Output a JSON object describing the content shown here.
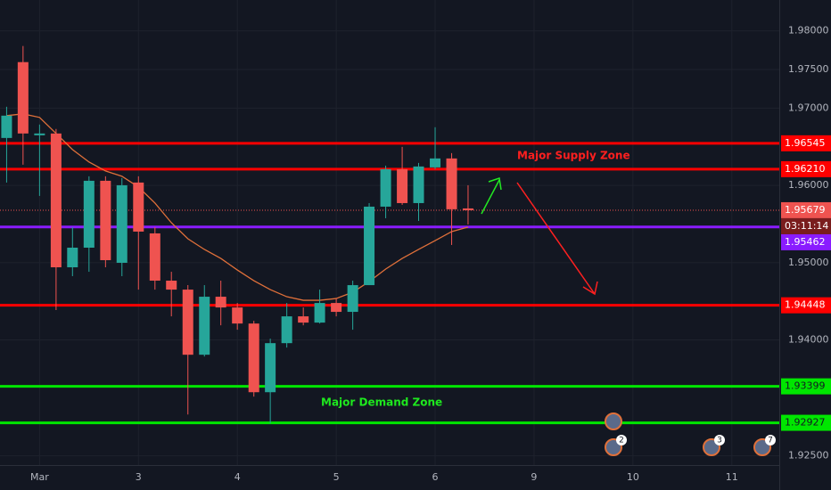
{
  "chart_data": {
    "type": "candlestick",
    "x": [
      -0.333,
      -0.167,
      0,
      0.167,
      0.333,
      0.5,
      0.667,
      0.833,
      1,
      1.167,
      1.333,
      1.5,
      1.667,
      1.833,
      2,
      2.167,
      2.333,
      2.5,
      2.667,
      2.833,
      3,
      3.167,
      3.333,
      3.5,
      3.667,
      3.833,
      4,
      4.167,
      4.333
    ],
    "open": [
      1.96614,
      1.97596,
      1.96649,
      1.96672,
      1.9494,
      1.95194,
      1.9606,
      1.94998,
      1.96037,
      1.95379,
      1.94767,
      1.94651,
      1.93808,
      1.94559,
      1.9442,
      1.94212,
      1.93323,
      1.93958,
      1.94305,
      1.94224,
      1.94478,
      1.94363,
      1.94709,
      1.95725,
      1.9621,
      1.95771,
      1.96233,
      1.96349,
      1.95702
    ],
    "high": [
      1.97018,
      1.97804,
      1.96788,
      1.9673,
      1.9546,
      1.96118,
      1.96118,
      1.96095,
      1.96118,
      1.9546,
      1.94882,
      1.94709,
      1.94709,
      1.94767,
      1.94478,
      1.94247,
      1.94016,
      1.94478,
      1.9442,
      1.94651,
      1.94536,
      1.94767,
      1.95771,
      1.96256,
      1.96499,
      1.96291,
      1.96753,
      1.96418,
      1.96002
    ],
    "low": [
      1.96037,
      1.96268,
      1.95864,
      1.94386,
      1.94825,
      1.94882,
      1.9494,
      1.94825,
      1.94651,
      1.94651,
      1.94305,
      1.93035,
      1.93785,
      1.94189,
      1.94132,
      1.93266,
      1.92919,
      1.93901,
      1.94189,
      1.94212,
      1.94305,
      1.94132,
      1.94709,
      1.95575,
      1.95748,
      1.9554,
      1.9621,
      1.95229,
      1.95494
    ],
    "close": [
      1.96903,
      1.96672,
      1.96672,
      1.9494,
      1.95194,
      1.9606,
      1.95032,
      1.96002,
      1.95402,
      1.94767,
      1.94651,
      1.93808,
      1.94559,
      1.9442,
      1.94212,
      1.93323,
      1.93958,
      1.94305,
      1.94224,
      1.94478,
      1.94363,
      1.94709,
      1.95725,
      1.9621,
      1.95771,
      1.96245,
      1.96349,
      1.95691,
      1.95679
    ],
    "up_color": "#26a69a",
    "down_color": "#ef5350",
    "ma": {
      "color": "#e0703a",
      "values": [
        1.96903,
        1.96926,
        1.9688,
        1.96672,
        1.96464,
        1.96303,
        1.96187,
        1.96118,
        1.95979,
        1.95771,
        1.95517,
        1.95309,
        1.95171,
        1.95055,
        1.94905,
        1.94767,
        1.94651,
        1.94559,
        1.94513,
        1.94513,
        1.94536,
        1.94617,
        1.94755,
        1.94917,
        1.95055,
        1.95171,
        1.95286,
        1.95402,
        1.9546
      ]
    },
    "xlim": [
      -0.4,
      7.48
    ],
    "ylim": [
      1.9238,
      1.984
    ],
    "xticks": [
      {
        "value": 0,
        "label": "Mar"
      },
      {
        "value": 1,
        "label": "3"
      },
      {
        "value": 2,
        "label": "4"
      },
      {
        "value": 3,
        "label": "5"
      },
      {
        "value": 4,
        "label": "6"
      },
      {
        "value": 5,
        "label": "9"
      },
      {
        "value": 6,
        "label": "10"
      },
      {
        "value": 7,
        "label": "11"
      }
    ],
    "yticks": [
      {
        "value": 1.98,
        "label": "1.98000"
      },
      {
        "value": 1.975,
        "label": "1.97500"
      },
      {
        "value": 1.97,
        "label": "1.97000"
      },
      {
        "value": 1.96,
        "label": "1.96000"
      },
      {
        "value": 1.95,
        "label": "1.95000"
      },
      {
        "value": 1.94,
        "label": "1.94000"
      },
      {
        "value": 1.925,
        "label": "1.92500"
      }
    ],
    "grid": true,
    "levels": [
      {
        "value": 1.96545,
        "label": "1.96545",
        "color": "#ff0000"
      },
      {
        "value": 1.9621,
        "label": "1.96210",
        "color": "#ff0000"
      },
      {
        "value": 1.95462,
        "label": "1.95462",
        "color": "#8a1cff"
      },
      {
        "value": 1.94448,
        "label": "1.94448",
        "color": "#ff0000"
      },
      {
        "value": 1.93399,
        "label": "1.93399",
        "color": "#00e600"
      },
      {
        "value": 1.92927,
        "label": "1.92927",
        "color": "#00e600"
      }
    ],
    "last_price": {
      "value": 1.95679,
      "label": "1.95679",
      "countdown": "03:11:14",
      "color": "#ef5350"
    },
    "annotations": [
      {
        "text": "Major Supply Zone",
        "color": "#ff1f1f"
      },
      {
        "text": "Major Demand Zone",
        "color": "#1ee81e"
      }
    ],
    "events": [
      "2",
      "3",
      "7"
    ]
  }
}
